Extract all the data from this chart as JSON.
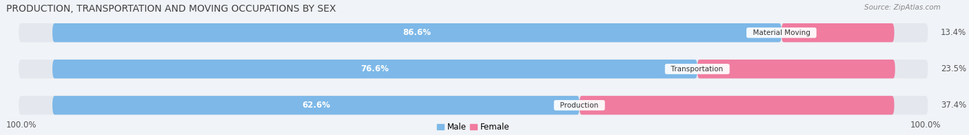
{
  "title": "PRODUCTION, TRANSPORTATION AND MOVING OCCUPATIONS BY SEX",
  "source": "Source: ZipAtlas.com",
  "categories": [
    "Material Moving",
    "Transportation",
    "Production"
  ],
  "male_values": [
    86.6,
    76.6,
    62.6
  ],
  "female_values": [
    13.4,
    23.5,
    37.4
  ],
  "male_color": "#7db8e8",
  "female_color": "#f07ca0",
  "male_color_light": "#b8d8f0",
  "female_color_light": "#f8b0c8",
  "bg_color": "#f0f3f7",
  "bar_bg": "#e4e8ee",
  "title_color": "#404040",
  "source_color": "#888888",
  "label_outside_color": "#555555",
  "legend_male_color": "#7db8e8",
  "legend_female_color": "#f07ca0",
  "title_fontsize": 10,
  "bar_label_fontsize": 8.5,
  "category_fontsize": 7.5,
  "axis_label_fontsize": 8.5,
  "legend_fontsize": 8.5,
  "x_left_label": "100.0%",
  "x_right_label": "100.0%"
}
